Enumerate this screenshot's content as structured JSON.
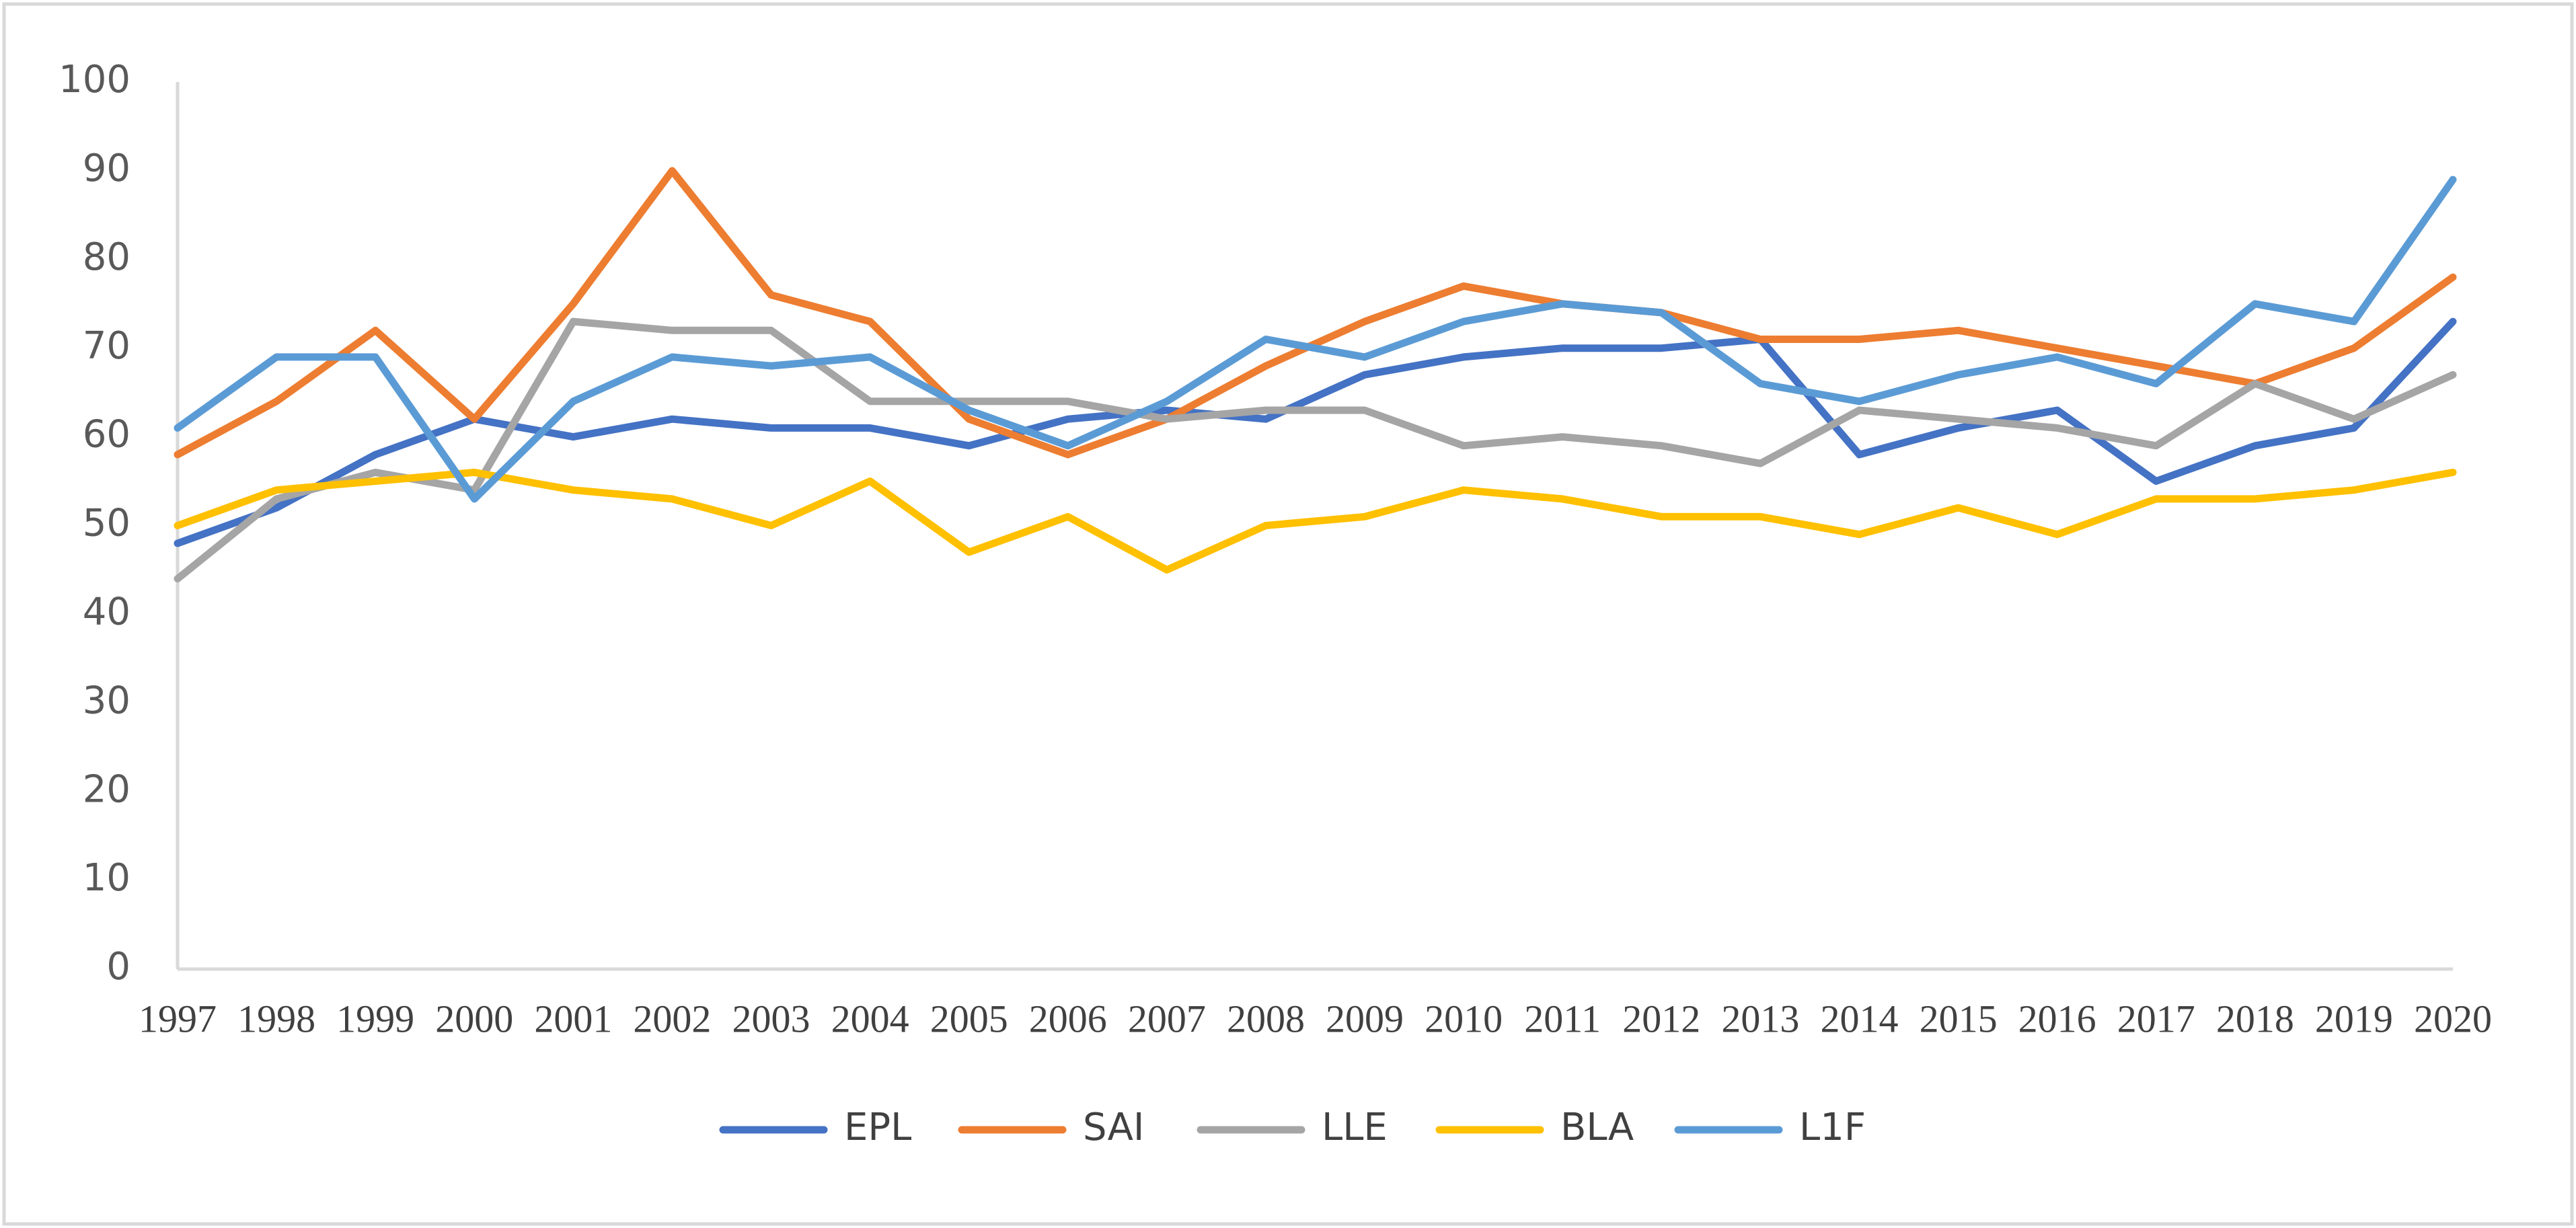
{
  "chart_data": {
    "type": "line",
    "categories": [
      "1997",
      "1998",
      "1999",
      "2000",
      "2001",
      "2002",
      "2003",
      "2004",
      "2005",
      "2006",
      "2007",
      "2008",
      "2009",
      "2010",
      "2011",
      "2012",
      "2013",
      "2014",
      "2015",
      "2016",
      "2017",
      "2018",
      "2019",
      "2020"
    ],
    "series": [
      {
        "name": "EPL",
        "color": "#4472c4",
        "values": [
          48,
          52,
          58,
          62,
          60,
          62,
          61,
          61,
          59,
          62,
          63,
          62,
          67,
          69,
          70,
          70,
          71,
          58,
          61,
          63,
          55,
          59,
          61,
          73
        ]
      },
      {
        "name": "SAI",
        "color": "#ed7d31",
        "values": [
          58,
          64,
          72,
          62,
          75,
          90,
          76,
          73,
          62,
          58,
          62,
          68,
          73,
          77,
          75,
          74,
          71,
          71,
          72,
          70,
          68,
          66,
          70,
          78
        ]
      },
      {
        "name": "LLE",
        "color": "#a5a5a5",
        "values": [
          44,
          53,
          56,
          54,
          73,
          72,
          72,
          64,
          64,
          64,
          62,
          63,
          63,
          59,
          60,
          59,
          57,
          63,
          62,
          61,
          59,
          66,
          62,
          67
        ]
      },
      {
        "name": "BLA",
        "color": "#ffc000",
        "values": [
          50,
          54,
          55,
          56,
          54,
          53,
          50,
          55,
          47,
          51,
          45,
          50,
          51,
          54,
          53,
          51,
          51,
          49,
          52,
          49,
          53,
          53,
          54,
          56
        ]
      },
      {
        "name": "L1F",
        "color": "#5b9bd5",
        "values": [
          61,
          69,
          69,
          53,
          64,
          69,
          68,
          69,
          63,
          59,
          64,
          71,
          69,
          73,
          75,
          74,
          66,
          64,
          67,
          69,
          66,
          75,
          73,
          89
        ]
      }
    ],
    "ylim": [
      0,
      100
    ],
    "yticks": [
      0,
      10,
      20,
      30,
      40,
      50,
      60,
      70,
      80,
      90,
      100
    ],
    "legend": "bottom"
  }
}
